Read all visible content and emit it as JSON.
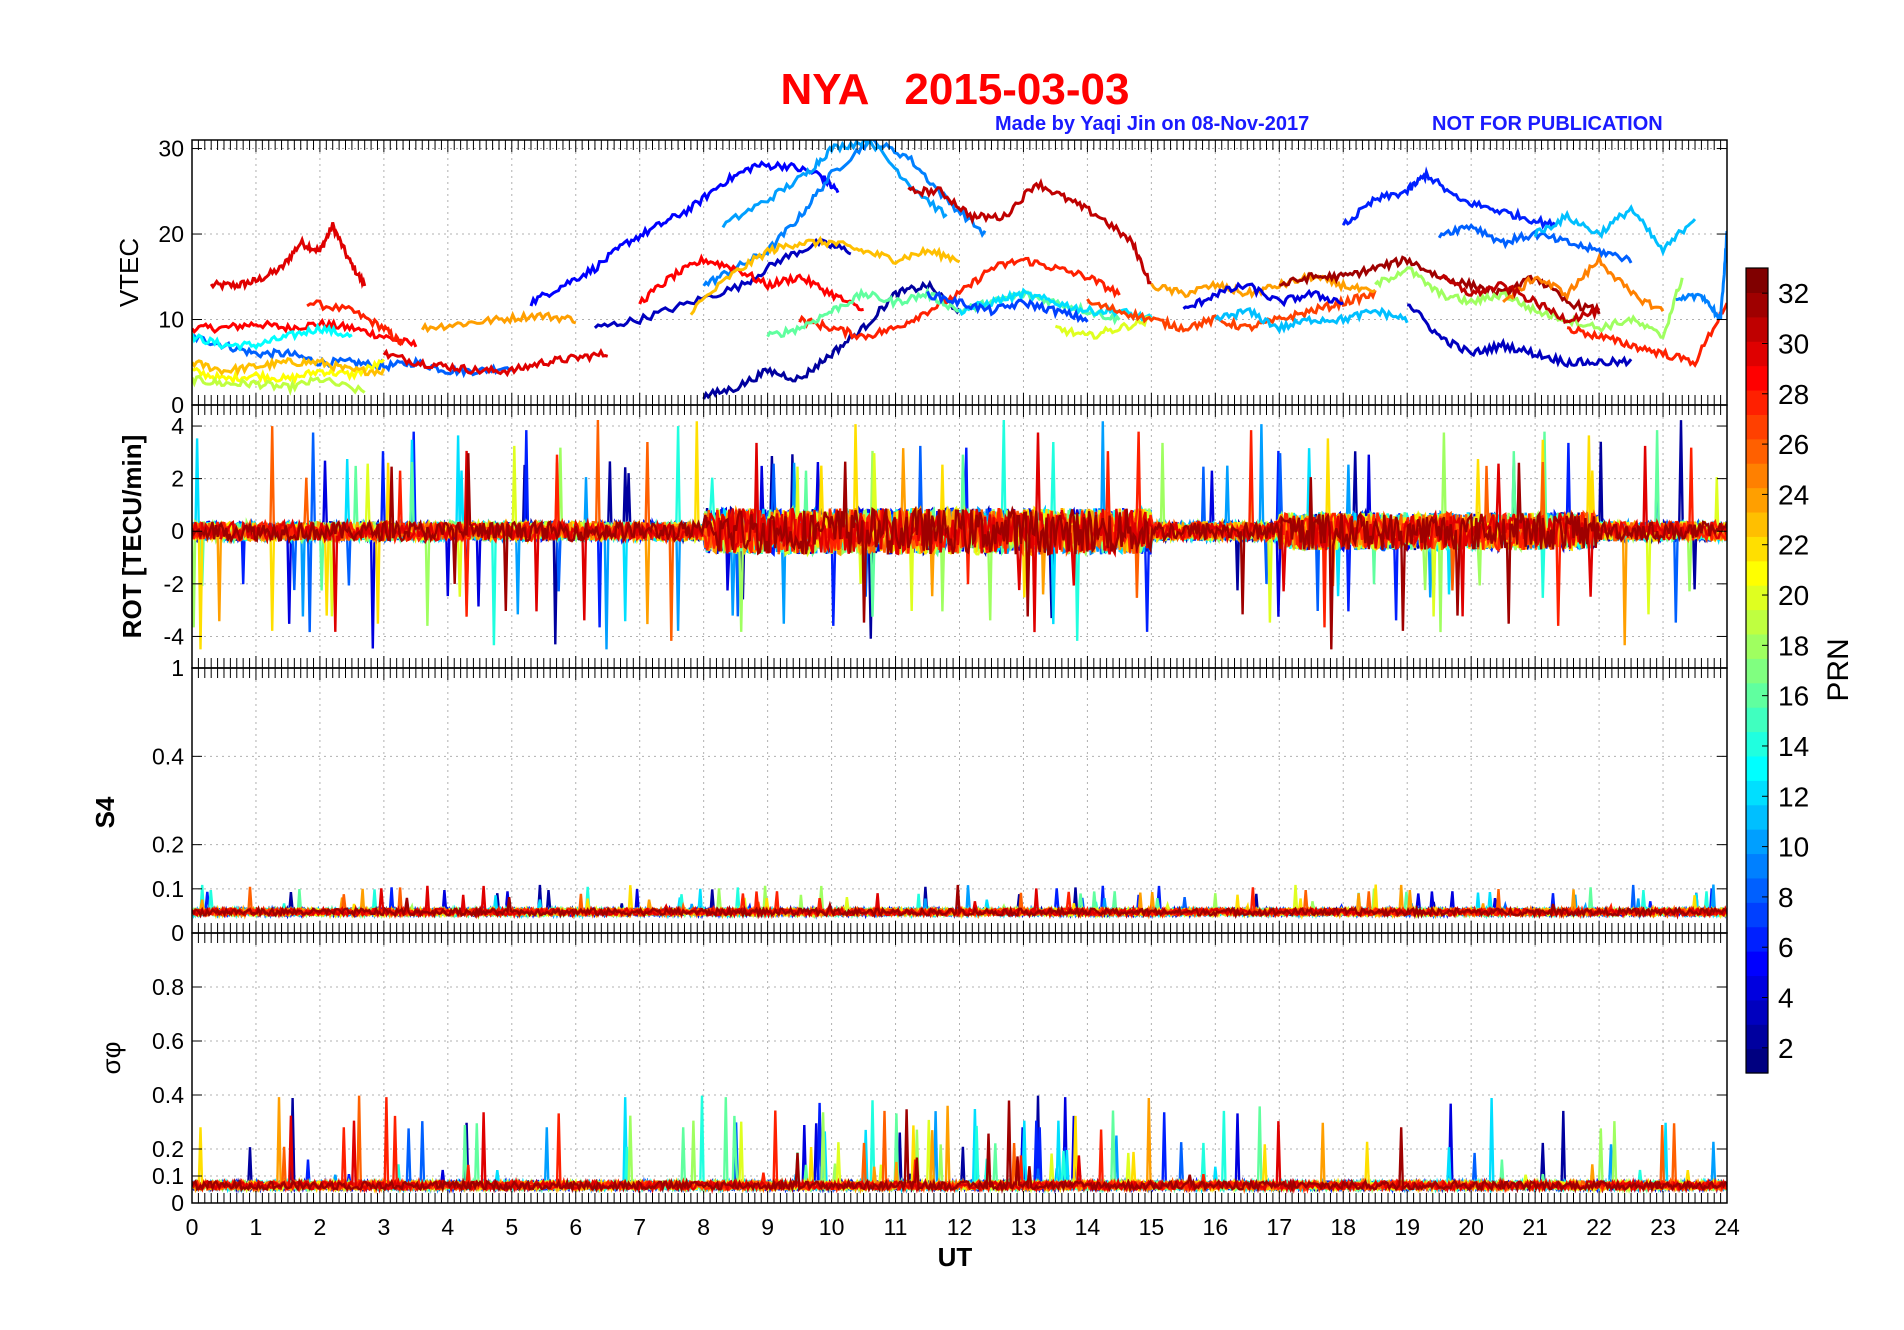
{
  "header": {
    "title": "NYA   2015-03-03",
    "credit": "Made by Yaqi Jin on 08-Nov-2017",
    "notice": "NOT FOR PUBLICATION"
  },
  "colors": {
    "title": "#ff0000",
    "credit": "#1a1aff",
    "grid": "#b0b0b0",
    "axis": "#000000",
    "colormap": "jet"
  },
  "chart_data": {
    "type": "line",
    "xlabel": "UT",
    "xlim": [
      0,
      24
    ],
    "xticks": [
      "0",
      "1",
      "2",
      "3",
      "4",
      "5",
      "6",
      "7",
      "8",
      "9",
      "10",
      "11",
      "12",
      "13",
      "14",
      "15",
      "16",
      "17",
      "18",
      "19",
      "20",
      "21",
      "22",
      "23",
      "24"
    ],
    "grid": true,
    "colorbar": {
      "label": "PRN",
      "range": [
        1,
        33
      ],
      "ticks": [
        "32",
        "30",
        "28",
        "26",
        "24",
        "22",
        "20",
        "18",
        "16",
        "14",
        "12",
        "10",
        "8",
        "6",
        "4",
        "2"
      ],
      "placement": "right"
    },
    "panels": [
      {
        "ylabel": "VTEC",
        "ylim": [
          0,
          31
        ],
        "yticks": [
          "30",
          "20",
          "10",
          "0"
        ],
        "series": [
          {
            "prn": 30,
            "x": [
              0.3,
              0.7,
              1.0,
              1.4,
              1.7,
              2.0,
              2.2,
              2.45,
              2.7
            ],
            "y": [
              14,
              14,
              14.5,
              16,
              19,
              18,
              21,
              17,
              14
            ]
          },
          {
            "prn": 29,
            "x": [
              0,
              0.5,
              1.0,
              1.5,
              2.0,
              2.5,
              3.0,
              3.5
            ],
            "y": [
              9,
              9,
              9.5,
              9,
              9.5,
              9,
              8,
              7
            ]
          },
          {
            "prn": 28,
            "x": [
              1.8,
              2.5,
              3.0,
              3.3
            ],
            "y": [
              12,
              11,
              9,
              7
            ]
          },
          {
            "prn": 8,
            "x": [
              0,
              0.5,
              1.0,
              1.5,
              2.0,
              2.5,
              3.0,
              3.5,
              4.0,
              4.5,
              5.0
            ],
            "y": [
              8,
              7,
              6,
              6,
              5,
              5,
              4.5,
              5,
              4,
              4,
              4.5
            ]
          },
          {
            "prn": 13,
            "x": [
              0,
              0.5,
              1.0,
              1.5,
              2.0,
              2.5
            ],
            "y": [
              8,
              7,
              7,
              8,
              9,
              8
            ]
          },
          {
            "prn": 21,
            "x": [
              0,
              0.5,
              1.0,
              1.5,
              2.0,
              2.5,
              3.0
            ],
            "y": [
              4,
              3,
              3.5,
              3,
              4,
              3.5,
              5
            ]
          },
          {
            "prn": 19,
            "x": [
              0,
              0.5,
              1.0,
              1.5,
              2.0,
              2.7
            ],
            "y": [
              3,
              2.5,
              2.5,
              2,
              3,
              1.5
            ]
          },
          {
            "prn": 23,
            "x": [
              0,
              0.5,
              1.0,
              1.5,
              2.0,
              2.5,
              3.0
            ],
            "y": [
              5,
              4,
              4.5,
              5,
              5,
              4,
              4
            ]
          },
          {
            "prn": 24,
            "x": [
              3.6,
              4.2,
              4.8,
              5.4,
              6.0
            ],
            "y": [
              9,
              9.5,
              10,
              10.5,
              10
            ]
          },
          {
            "prn": 30,
            "x": [
              3.0,
              3.5,
              4.0,
              4.5,
              5.0,
              5.5,
              6.0,
              6.5
            ],
            "y": [
              6,
              5,
              4.5,
              4,
              4,
              5,
              5.5,
              6
            ]
          },
          {
            "prn": 5,
            "x": [
              5.3,
              5.8,
              6.3,
              6.8,
              7.3,
              7.8,
              8.3,
              8.8,
              9.3,
              9.8,
              10.1
            ],
            "y": [
              12,
              14,
              16,
              19,
              21,
              23,
              26,
              28,
              28,
              27,
              25
            ]
          },
          {
            "prn": 3,
            "x": [
              6.3,
              7.0,
              7.8,
              8.6,
              9.2,
              9.8,
              10.3
            ],
            "y": [
              9,
              10,
              12,
              14,
              17,
              19,
              18
            ]
          },
          {
            "prn": 9,
            "x": [
              8.0,
              8.5,
              9.0,
              9.5,
              10.0,
              10.6,
              11.2,
              11.8,
              12.4
            ],
            "y": [
              14,
              16,
              18,
              22,
              27,
              31,
              29,
              24,
              20
            ]
          },
          {
            "prn": 10,
            "x": [
              8.3,
              9.0,
              9.6,
              10.0,
              10.6,
              11.2,
              11.8
            ],
            "y": [
              21,
              24,
              27,
              30,
              31,
              26,
              22
            ]
          },
          {
            "prn": 29,
            "x": [
              7.0,
              7.5,
              8.0,
              8.5,
              9.0,
              9.5,
              10.0,
              10.5
            ],
            "y": [
              12,
              15,
              17,
              16,
              14,
              15,
              13,
              11
            ]
          },
          {
            "prn": 23,
            "x": [
              7.8,
              8.4,
              9.0,
              9.5,
              10.0,
              10.5,
              11.0,
              11.5,
              12.0
            ],
            "y": [
              11,
              15,
              18,
              19,
              19,
              18,
              17,
              18,
              17
            ]
          },
          {
            "prn": 2,
            "x": [
              8.0,
              8.5,
              9.0,
              9.5,
              10.0,
              10.5,
              11.0,
              11.5,
              12.0
            ],
            "y": [
              1,
              2,
              4,
              3,
              6,
              9,
              13,
              14,
              11
            ]
          },
          {
            "prn": 31,
            "x": [
              11.2,
              11.7,
              12.2,
              12.7,
              13.2,
              13.7,
              14.2,
              14.7,
              15.0
            ],
            "y": [
              25,
              25,
              22,
              22,
              26,
              24,
              22,
              19,
              14
            ]
          },
          {
            "prn": 28,
            "x": [
              9.5,
              10.0,
              10.5,
              11.0,
              11.5,
              12.0,
              12.5,
              13.0,
              13.5,
              14.0,
              14.5
            ],
            "y": [
              10,
              9,
              8,
              9,
              11,
              13,
              16,
              17,
              16,
              15,
              13
            ]
          },
          {
            "prn": 16,
            "x": [
              9.0,
              9.5,
              10.0,
              10.5,
              11.0,
              11.5,
              12.0,
              12.5,
              13.0,
              13.5,
              14.0,
              14.5
            ],
            "y": [
              8,
              9,
              11,
              13,
              12,
              13,
              11,
              12,
              13,
              12,
              11,
              10
            ]
          },
          {
            "prn": 12,
            "x": [
              12.0,
              12.5,
              13.0,
              13.5,
              14.0,
              14.5,
              15.0
            ],
            "y": [
              11,
              12,
              13,
              12,
              11,
              11,
              10
            ]
          },
          {
            "prn": 20,
            "x": [
              13.5,
              14.0,
              14.5,
              15.0
            ],
            "y": [
              9,
              8,
              9,
              10
            ]
          },
          {
            "prn": 7,
            "x": [
              11.5,
              12.0,
              12.5,
              13.0,
              13.5,
              14.0
            ],
            "y": [
              13,
              12,
              11,
              12,
              11,
              10
            ]
          },
          {
            "prn": 27,
            "x": [
              14.0,
              14.5,
              15.0,
              15.5,
              16.0,
              16.5,
              17.0,
              17.5,
              18.0,
              18.5
            ],
            "y": [
              12,
              11,
              10,
              9,
              10,
              9,
              10,
              11,
              12,
              13
            ]
          },
          {
            "prn": 24,
            "x": [
              15.0,
              15.5,
              16.0,
              16.5,
              17.0,
              17.5,
              18.0,
              18.5
            ],
            "y": [
              14,
              13,
              14,
              13,
              14,
              15,
              14,
              13
            ]
          },
          {
            "prn": 11,
            "x": [
              16.0,
              16.5,
              17.0,
              17.5,
              18.0,
              18.5,
              19.0
            ],
            "y": [
              10,
              11,
              9,
              10,
              10,
              11,
              10
            ]
          },
          {
            "prn": 4,
            "x": [
              15.5,
              16.0,
              16.5,
              17.0,
              17.5,
              18.0
            ],
            "y": [
              11,
              13,
              14,
              12,
              13,
              12
            ]
          },
          {
            "prn": 32,
            "x": [
              17.0,
              17.5,
              18.0,
              18.5,
              19.0,
              19.5,
              20.0,
              20.5,
              21.0,
              21.5,
              22.0
            ],
            "y": [
              14,
              15,
              15,
              16,
              17,
              15,
              14,
              13,
              15,
              12,
              11
            ]
          },
          {
            "prn": 6,
            "x": [
              18.0,
              18.5,
              19.0,
              19.3,
              19.8,
              20.3,
              20.8,
              21.3
            ],
            "y": [
              21,
              24,
              25,
              27,
              24,
              23,
              22,
              21
            ]
          },
          {
            "prn": 8,
            "x": [
              19.5,
              20.0,
              20.5,
              21.0,
              21.5,
              22.0,
              22.5
            ],
            "y": [
              20,
              21,
              19,
              20,
              19,
              18,
              17
            ]
          },
          {
            "prn": 11,
            "x": [
              21.0,
              21.5,
              22.0,
              22.5,
              23.0,
              23.5
            ],
            "y": [
              20,
              22,
              20,
              23,
              18,
              22
            ]
          },
          {
            "prn": 3,
            "x": [
              19.0,
              19.5,
              20.0,
              20.5,
              21.0,
              21.5,
              22.0,
              22.5
            ],
            "y": [
              12,
              8,
              6,
              7,
              6,
              5,
              5,
              5
            ]
          },
          {
            "prn": 18,
            "x": [
              18.5,
              19.0,
              19.5,
              20.0,
              20.5,
              21.0,
              21.5,
              22.0,
              22.5,
              23.0,
              23.3
            ],
            "y": [
              14,
              16,
              13,
              12,
              13,
              11,
              10,
              9,
              10,
              8,
              15
            ]
          },
          {
            "prn": 25,
            "x": [
              20.5,
              21.0,
              21.5,
              22.0,
              22.5,
              23.0
            ],
            "y": [
              12,
              15,
              13,
              17,
              13,
              11
            ]
          },
          {
            "prn": 28,
            "x": [
              21.5,
              22.0,
              22.5,
              23.0,
              23.5,
              24.0
            ],
            "y": [
              9,
              8,
              7,
              6,
              5,
              12
            ]
          },
          {
            "prn": 31,
            "x": [
              19.5,
              20.0,
              20.5,
              21.0,
              21.5,
              22.0
            ],
            "y": [
              15,
              13,
              14,
              12,
              10,
              11
            ]
          },
          {
            "prn": 9,
            "x": [
              23.2,
              23.6,
              23.9,
              24.0
            ],
            "y": [
              12,
              13,
              10,
              20
            ]
          }
        ]
      },
      {
        "ylabel": "ROT [TECU/min]",
        "ylim": [
          -5.2,
          4.8
        ],
        "yticks": [
          "4",
          "2",
          "0",
          "-2",
          "-4"
        ]
      },
      {
        "ylabel": "S4",
        "ylim": [
          0,
          0.6
        ],
        "yticks": [
          "0.4",
          "0.2",
          "0.1",
          "0"
        ]
      },
      {
        "ylabel": "σφ",
        "ylim": [
          0,
          1.0
        ],
        "yticks": [
          "0.8",
          "0.6",
          "0.4",
          "0.2",
          "0.1",
          "0"
        ]
      }
    ],
    "s4_top_tick_label": "1"
  }
}
